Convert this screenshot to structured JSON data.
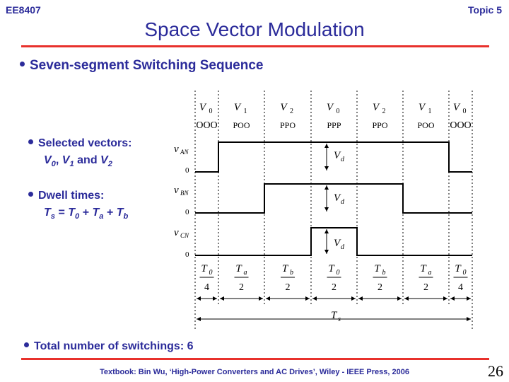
{
  "header": {
    "course": "EE8407",
    "topic": "Topic 5",
    "title": "Space Vector Modulation"
  },
  "bullets": {
    "main": "Seven-segment Switching Sequence",
    "selected_label": "Selected vectors:",
    "selected_v0": "V",
    "selected_v0_sub": "0",
    "selected_sep1": ", ",
    "selected_v1": "V",
    "selected_v1_sub": "1",
    "selected_and": " and ",
    "selected_v2": "V",
    "selected_v2_sub": "2",
    "dwell_label": "Dwell times:",
    "dwell_ts": "T",
    "dwell_ts_sub": "s",
    "dwell_eq": " = ",
    "dwell_t0": "T",
    "dwell_t0_sub": "0",
    "dwell_plus1": " + ",
    "dwell_ta": "T",
    "dwell_ta_sub": "a",
    "dwell_plus2": " + ",
    "dwell_tb": "T",
    "dwell_tb_sub": "b",
    "total": "Total number of switchings: 6"
  },
  "diagram": {
    "segments": [
      {
        "vector": "V",
        "vector_sub": "0",
        "state": "OOO",
        "t_num": "T",
        "t_num_sub": "0",
        "t_den": "4"
      },
      {
        "vector": "V",
        "vector_sub": "1",
        "state": "POO",
        "t_num": "T",
        "t_num_sub": "a",
        "t_den": "2"
      },
      {
        "vector": "V",
        "vector_sub": "2",
        "state": "PPO",
        "t_num": "T",
        "t_num_sub": "b",
        "t_den": "2"
      },
      {
        "vector": "V",
        "vector_sub": "0",
        "state": "PPP",
        "t_num": "T",
        "t_num_sub": "0",
        "t_den": "2"
      },
      {
        "vector": "V",
        "vector_sub": "2",
        "state": "PPO",
        "t_num": "T",
        "t_num_sub": "b",
        "t_den": "2"
      },
      {
        "vector": "V",
        "vector_sub": "1",
        "state": "POO",
        "t_num": "T",
        "t_num_sub": "a",
        "t_den": "2"
      },
      {
        "vector": "V",
        "vector_sub": "0",
        "state": "OOO",
        "t_num": "T",
        "t_num_sub": "0",
        "t_den": "4"
      }
    ],
    "waveforms": [
      {
        "label": "v",
        "label_sub": "AN",
        "zero": "0",
        "amp": "V",
        "amp_sub": "d"
      },
      {
        "label": "v",
        "label_sub": "BN",
        "zero": "0",
        "amp": "V",
        "amp_sub": "d"
      },
      {
        "label": "v",
        "label_sub": "CN",
        "zero": "0",
        "amp": "V",
        "amp_sub": "d"
      }
    ],
    "period": "T",
    "period_sub": "s"
  },
  "footer": {
    "text": "Textbook: Bin Wu, ‘High-Power Converters and AC Drives’, Wiley - IEEE Press, 2006",
    "page": "26"
  }
}
